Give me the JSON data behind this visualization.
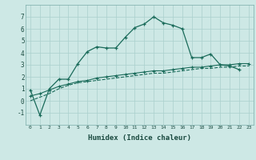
{
  "xlabel": "Humidex (Indice chaleur)",
  "ylabel": "",
  "background_color": "#cde8e5",
  "grid_color": "#aacfcc",
  "line_color": "#1a6b5a",
  "xlim": [
    -0.5,
    23.5
  ],
  "ylim": [
    -2,
    8
  ],
  "xticks": [
    0,
    1,
    2,
    3,
    4,
    5,
    6,
    7,
    8,
    9,
    10,
    11,
    12,
    13,
    14,
    15,
    16,
    17,
    18,
    19,
    20,
    21,
    22,
    23
  ],
  "yticks": [
    -1,
    0,
    1,
    2,
    3,
    4,
    5,
    6,
    7
  ],
  "series1_x": [
    0,
    1,
    2,
    3,
    4,
    5,
    6,
    7,
    8,
    9,
    10,
    11,
    12,
    13,
    14,
    15,
    16,
    17,
    18,
    19,
    20,
    21,
    22
  ],
  "series1_y": [
    0.9,
    -1.2,
    1.0,
    1.8,
    1.8,
    3.1,
    4.1,
    4.5,
    4.4,
    4.4,
    5.3,
    6.1,
    6.4,
    7.0,
    6.5,
    6.3,
    6.0,
    3.6,
    3.6,
    3.9,
    3.0,
    2.9,
    2.6
  ],
  "series2_x": [
    0,
    1,
    2,
    3,
    4,
    5,
    6,
    7,
    8,
    9,
    10,
    11,
    12,
    13,
    14,
    15,
    16,
    17,
    18,
    19,
    20,
    21,
    22,
    23
  ],
  "series2_y": [
    0.4,
    0.6,
    0.9,
    1.2,
    1.4,
    1.6,
    1.7,
    1.9,
    2.0,
    2.1,
    2.2,
    2.3,
    2.4,
    2.5,
    2.5,
    2.6,
    2.7,
    2.8,
    2.8,
    2.9,
    3.0,
    3.0,
    3.1,
    3.1
  ],
  "series3_x": [
    0,
    1,
    2,
    3,
    4,
    5,
    6,
    7,
    8,
    9,
    10,
    11,
    12,
    13,
    14,
    15,
    16,
    17,
    18,
    19,
    20,
    21,
    22,
    23
  ],
  "series3_y": [
    0.0,
    0.3,
    0.6,
    1.0,
    1.3,
    1.5,
    1.6,
    1.7,
    1.8,
    1.9,
    2.0,
    2.1,
    2.2,
    2.3,
    2.3,
    2.4,
    2.5,
    2.6,
    2.7,
    2.7,
    2.8,
    2.8,
    2.9,
    2.9
  ]
}
